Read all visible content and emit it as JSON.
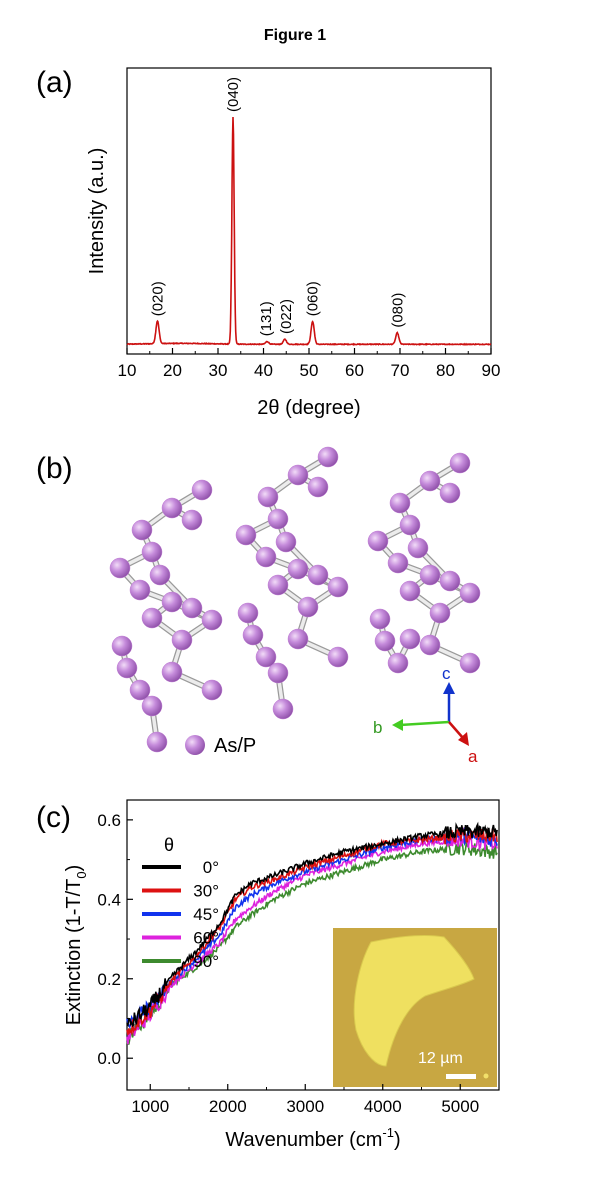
{
  "figure_title": "Figure 1",
  "panels": {
    "a": {
      "letter": "(a)"
    },
    "b": {
      "letter": "(b)",
      "legend_label": "As/P",
      "axes": {
        "a": "a",
        "b": "b",
        "c": "c"
      },
      "atom_color": "#c07fd4",
      "axis_colors": {
        "a": "#cc1111",
        "b": "#44cc22",
        "c": "#1133cc"
      }
    },
    "c": {
      "letter": "(c)",
      "legend_title": "θ",
      "scale_bar": "12 µm"
    }
  },
  "chart_data": [
    {
      "id": "xrd",
      "type": "line",
      "title": "",
      "xlabel": "2θ (degree)",
      "ylabel": "Intensity (a.u.)",
      "xlim": [
        10,
        90
      ],
      "xticks": [
        10,
        20,
        30,
        40,
        50,
        60,
        70,
        80,
        90
      ],
      "yticks_shown": false,
      "grid": false,
      "series": [
        {
          "color": "#cc1111",
          "peaks": [
            {
              "label": "(020)",
              "x": 16.7,
              "y": 0.1
            },
            {
              "label": "(040)",
              "x": 33.3,
              "y": 1.0
            },
            {
              "label": "(131)",
              "x": 40.8,
              "y": 0.012
            },
            {
              "label": "(022)",
              "x": 44.7,
              "y": 0.022
            },
            {
              "label": "(060)",
              "x": 50.8,
              "y": 0.1
            },
            {
              "label": "(080)",
              "x": 69.4,
              "y": 0.05
            }
          ]
        }
      ]
    },
    {
      "id": "extinction",
      "type": "line",
      "title": "",
      "xlabel": "Wavenumber (cm",
      "xlabel_sup": "-1",
      "xlabel_end": ")",
      "ylabel": "Extinction (1-T/T",
      "ylabel_sub": "0",
      "ylabel_end": ")",
      "xlim": [
        700,
        5500
      ],
      "ylim": [
        -0.08,
        0.65
      ],
      "xticks": [
        1000,
        2000,
        3000,
        4000,
        5000
      ],
      "yticks": [
        0.0,
        0.2,
        0.4,
        0.6
      ],
      "ytick_labels": [
        "0.0",
        "0.2",
        "0.4",
        "0.6"
      ],
      "grid": false,
      "legend_position": "top-left",
      "x": [
        700,
        1000,
        1300,
        1600,
        1900,
        2100,
        2300,
        2600,
        3000,
        3500,
        4000,
        4500,
        5000,
        5400
      ],
      "series": [
        {
          "name": "0°",
          "color": "#000000",
          "values": [
            0.08,
            0.13,
            0.21,
            0.27,
            0.34,
            0.41,
            0.44,
            0.46,
            0.49,
            0.52,
            0.54,
            0.56,
            0.57,
            0.57
          ]
        },
        {
          "name": "30°",
          "color": "#dd1111",
          "values": [
            0.07,
            0.12,
            0.2,
            0.26,
            0.33,
            0.4,
            0.43,
            0.45,
            0.48,
            0.51,
            0.54,
            0.55,
            0.56,
            0.56
          ]
        },
        {
          "name": "45°",
          "color": "#1133ee",
          "values": [
            0.08,
            0.13,
            0.2,
            0.25,
            0.31,
            0.38,
            0.41,
            0.44,
            0.47,
            0.5,
            0.53,
            0.55,
            0.56,
            0.55
          ]
        },
        {
          "name": "60°",
          "color": "#dd22dd",
          "values": [
            0.05,
            0.11,
            0.19,
            0.24,
            0.29,
            0.35,
            0.38,
            0.42,
            0.46,
            0.49,
            0.52,
            0.54,
            0.55,
            0.54
          ]
        },
        {
          "name": "90°",
          "color": "#3d8a2e",
          "values": [
            0.05,
            0.11,
            0.19,
            0.23,
            0.28,
            0.33,
            0.36,
            0.4,
            0.44,
            0.47,
            0.5,
            0.52,
            0.53,
            0.52
          ]
        }
      ]
    }
  ]
}
